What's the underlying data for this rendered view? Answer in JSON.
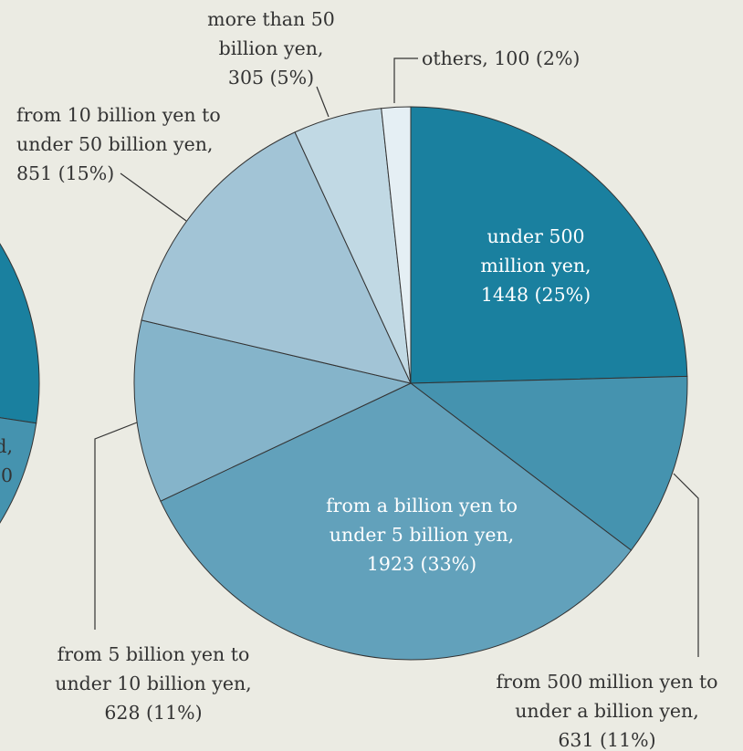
{
  "chart_data": {
    "type": "pie",
    "slices": [
      {
        "label": "under 500 million yen",
        "value": 1448,
        "percent": 25,
        "color": "#1a809f",
        "text_lines": [
          "under 500",
          "million yen,",
          "1448 (25%)"
        ],
        "text_color": "#ffffff"
      },
      {
        "label": "from 500 million yen to under a billion yen",
        "value": 631,
        "percent": 11,
        "color": "#4593af",
        "text_lines": [
          "from 500 million yen to",
          "under a billion yen,",
          "631 (11%)"
        ],
        "text_color": "#333333"
      },
      {
        "label": "from a billion yen to under 5 billion yen",
        "value": 1923,
        "percent": 33,
        "color": "#62a1bb",
        "text_lines": [
          "from a billion yen to",
          "under 5 billion yen,",
          "1923 (33%)"
        ],
        "text_color": "#ffffff"
      },
      {
        "label": "from 5 billion yen to under 10 billion yen",
        "value": 628,
        "percent": 11,
        "color": "#85b4ca",
        "text_lines": [
          "from 5 billion yen to",
          "under 10 billion yen,",
          "628 (11%)"
        ],
        "text_color": "#333333"
      },
      {
        "label": "from 10 billion yen to under 50 billion yen",
        "value": 851,
        "percent": 15,
        "color": "#a2c4d6",
        "text_lines": [
          "from 10 billion yen to",
          "under 50 billion yen,",
          "851 (15%)"
        ],
        "text_color": "#333333"
      },
      {
        "label": "more than 50 billion yen",
        "value": 305,
        "percent": 5,
        "color": "#c1d9e4",
        "text_lines": [
          "more than 50",
          "billion yen,",
          "305 (5%)"
        ],
        "text_color": "#333333"
      },
      {
        "label": "others",
        "value": 100,
        "percent": 2,
        "color": "#e5eff4",
        "text_lines": [
          "others, 100 (2%)"
        ],
        "text_color": "#333333"
      }
    ]
  },
  "colors": {
    "background": "#ebebe3",
    "stroke": "#333333",
    "left_partial_pie": [
      "#1a809f",
      "#4593af",
      "#62a1bb"
    ]
  },
  "left_pie_fragment": {
    "text_lines": [
      "d,",
      "0"
    ]
  }
}
